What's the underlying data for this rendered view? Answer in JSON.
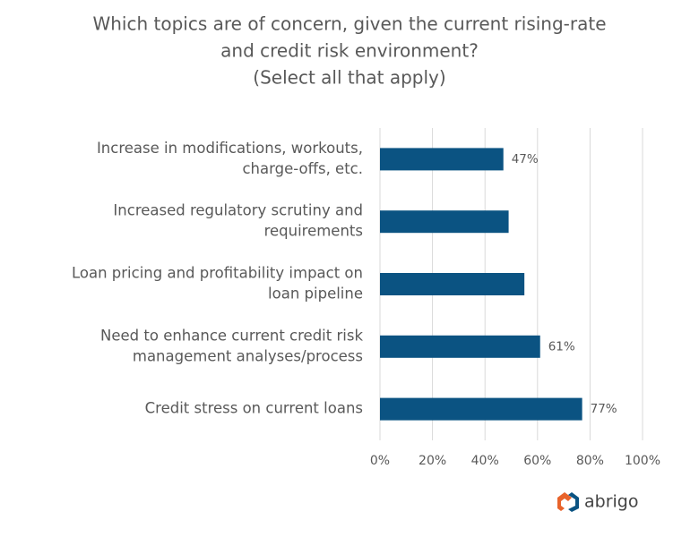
{
  "chart_data": {
    "type": "bar",
    "orientation": "horizontal",
    "title": [
      "Which topics are of concern, given the current rising-rate",
      "and credit risk environment?",
      "(Select all that apply)"
    ],
    "categories": [
      [
        "Increase in modifications, workouts,",
        "charge-offs, etc."
      ],
      [
        "Increased regulatory scrutiny and",
        "requirements"
      ],
      [
        "Loan pricing and profitability impact on",
        "loan pipeline"
      ],
      [
        "Need to enhance current credit risk",
        "management analyses/process"
      ],
      [
        "Credit stress on current loans"
      ]
    ],
    "values": [
      47,
      49,
      55,
      61,
      77
    ],
    "value_labels": [
      "47%",
      null,
      null,
      "61%",
      "77%"
    ],
    "color": "#0b5382",
    "xlim": [
      0,
      100
    ],
    "xticks": [
      {
        "value": 0,
        "label": "0%"
      },
      {
        "value": 20,
        "label": "20%"
      },
      {
        "value": 40,
        "label": "40%"
      },
      {
        "value": 60,
        "label": "60%"
      },
      {
        "value": 80,
        "label": "80%"
      },
      {
        "value": 100,
        "label": "100%"
      }
    ],
    "grid": true
  },
  "logo": "abrigo"
}
